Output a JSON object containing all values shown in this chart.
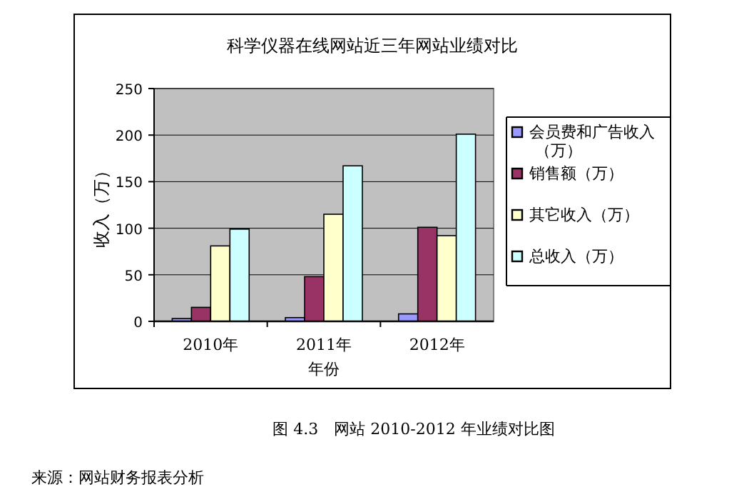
{
  "chart_data": {
    "type": "bar",
    "title": "科学仪器在线网站近三年网站业绩对比",
    "xlabel": "年份",
    "ylabel": "收入（万）",
    "categories": [
      "2010年",
      "2011年",
      "2012年"
    ],
    "series": [
      {
        "name": "会员费和广告收入（万）",
        "color": "#9999ff",
        "values": [
          3,
          4,
          8
        ]
      },
      {
        "name": "销售额（万）",
        "color": "#993366",
        "values": [
          15,
          48,
          101
        ]
      },
      {
        "name": "其它收入（万）",
        "color": "#ffffcc",
        "values": [
          81,
          115,
          92
        ]
      },
      {
        "name": "总收入（万）",
        "color": "#ccffff",
        "values": [
          99,
          167,
          201
        ]
      }
    ],
    "ylim": [
      0,
      250
    ],
    "yticks": [
      0,
      50,
      100,
      150,
      200,
      250
    ],
    "grid": "y",
    "legend": "right",
    "annotations": [
      "图 4.3　网站 2010-2012 年业绩对比图",
      "来源：网站财务报表分析"
    ]
  }
}
